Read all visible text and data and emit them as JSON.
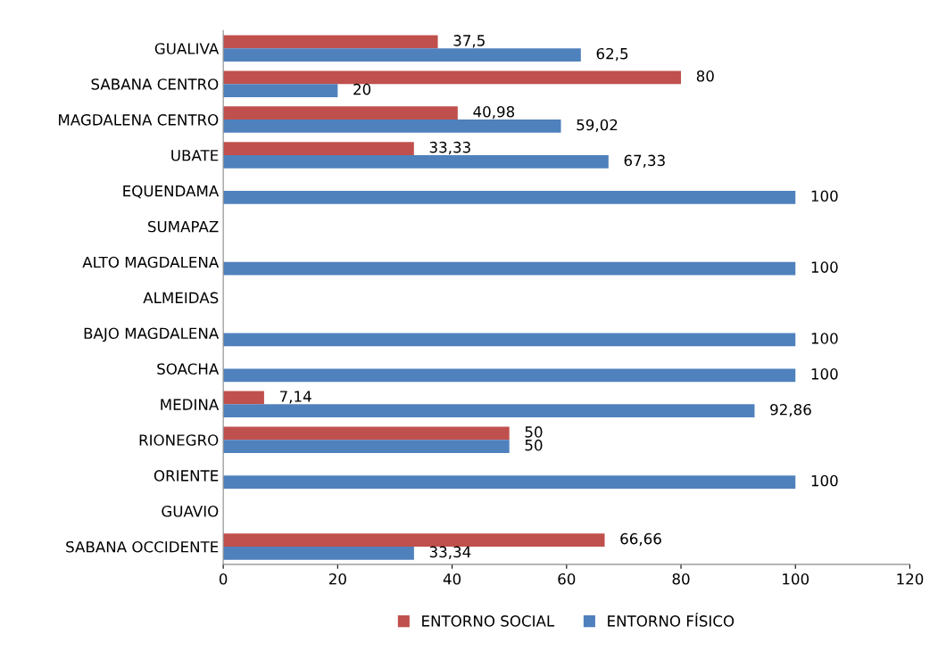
{
  "chart_data": {
    "type": "bar",
    "orientation": "horizontal",
    "categories": [
      "GUALIVA",
      "SABANA CENTRO",
      "MAGDALENA CENTRO",
      "UBATE",
      "EQUENDAMA",
      "SUMAPAZ",
      "ALTO MAGDALENA",
      "ALMEIDAS",
      "BAJO MAGDALENA",
      "SOACHA",
      "MEDINA",
      "RIONEGRO",
      "ORIENTE",
      "GUAVIO",
      "SABANA OCCIDENTE"
    ],
    "series": [
      {
        "name": "ENTORNO SOCIAL",
        "color": "#c0504d",
        "values": [
          37.5,
          80,
          40.98,
          33.33,
          null,
          null,
          null,
          null,
          null,
          null,
          7.14,
          50,
          null,
          null,
          66.66
        ],
        "value_labels": [
          "37,5",
          "80",
          "40,98",
          "33,33",
          null,
          null,
          null,
          null,
          null,
          null,
          "7,14",
          "50",
          null,
          null,
          "66,66"
        ]
      },
      {
        "name": "ENTORNO FÍSICO",
        "color": "#4f81bd",
        "values": [
          62.5,
          20,
          59.02,
          67.33,
          100,
          null,
          100,
          null,
          100,
          100,
          92.86,
          50,
          100,
          null,
          33.34
        ],
        "value_labels": [
          "62,5",
          "20",
          "59,02",
          "67,33",
          "100",
          null,
          "100",
          null,
          "100",
          "100",
          "92,86",
          "50",
          "100",
          null,
          "33,34"
        ]
      }
    ],
    "xlim": [
      0,
      120
    ],
    "xticks": [
      0,
      20,
      40,
      60,
      80,
      100,
      120
    ],
    "grid": false,
    "legend": "bottom"
  }
}
